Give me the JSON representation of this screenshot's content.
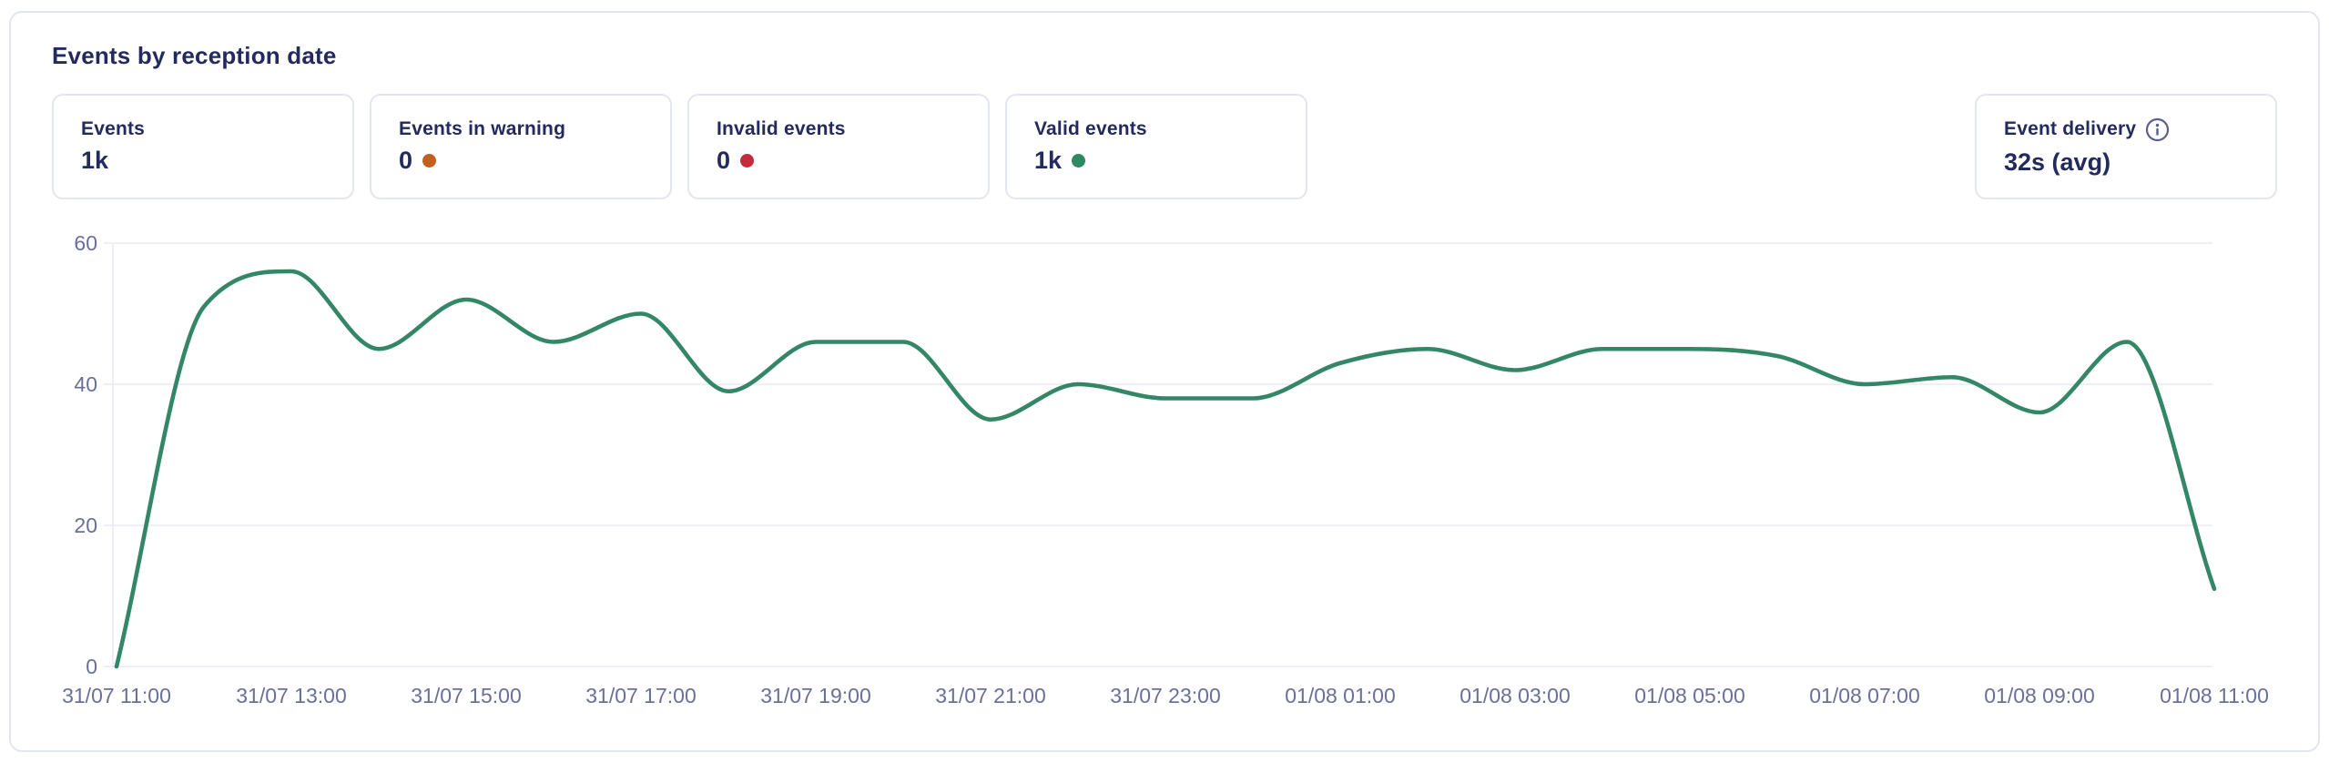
{
  "panel": {
    "title": "Events by reception date"
  },
  "stats": [
    {
      "label": "Events",
      "value": "1k"
    },
    {
      "label": "Events in warning",
      "value": "0",
      "dot_color": "#c2611f"
    },
    {
      "label": "Invalid events",
      "value": "0",
      "dot_color": "#c62b3d"
    },
    {
      "label": "Valid events",
      "value": "1k",
      "dot_color": "#2e8a64"
    }
  ],
  "delivery": {
    "label": "Event delivery",
    "value": "32s (avg)",
    "icon": "info-icon"
  },
  "colors": {
    "text_navy": "#232a5e",
    "tick_text": "#6a6f99",
    "card_border": "#e3e5f1",
    "gridline": "#e9ebf3",
    "line": "#338766",
    "info_icon": "#5a5f92"
  },
  "chart_data": {
    "type": "line",
    "title": "Events by reception date",
    "x": [
      "31/07 11:00",
      "31/07 12:00",
      "31/07 13:00",
      "31/07 14:00",
      "31/07 15:00",
      "31/07 16:00",
      "31/07 17:00",
      "31/07 18:00",
      "31/07 19:00",
      "31/07 20:00",
      "31/07 21:00",
      "31/07 22:00",
      "31/07 23:00",
      "01/08 00:00",
      "01/08 01:00",
      "01/08 02:00",
      "01/08 03:00",
      "01/08 04:00",
      "01/08 05:00",
      "01/08 06:00",
      "01/08 07:00",
      "01/08 08:00",
      "01/08 09:00",
      "01/08 10:00",
      "01/08 11:00"
    ],
    "values": [
      0,
      51,
      56,
      45,
      52,
      46,
      50,
      39,
      46,
      46,
      35,
      40,
      38,
      38,
      43,
      45,
      42,
      45,
      45,
      44,
      40,
      41,
      36,
      46,
      11
    ],
    "x_tick_labels": [
      "31/07 11:00",
      "31/07 13:00",
      "31/07 15:00",
      "31/07 17:00",
      "31/07 19:00",
      "31/07 21:00",
      "31/07 23:00",
      "01/08 01:00",
      "01/08 03:00",
      "01/08 05:00",
      "01/08 07:00",
      "01/08 09:00",
      "01/08 11:00"
    ],
    "y_ticks": [
      0,
      20,
      40,
      60
    ],
    "ylim": [
      0,
      60
    ],
    "grid": "horizontal",
    "legend": "none",
    "line_color": "#338766"
  }
}
